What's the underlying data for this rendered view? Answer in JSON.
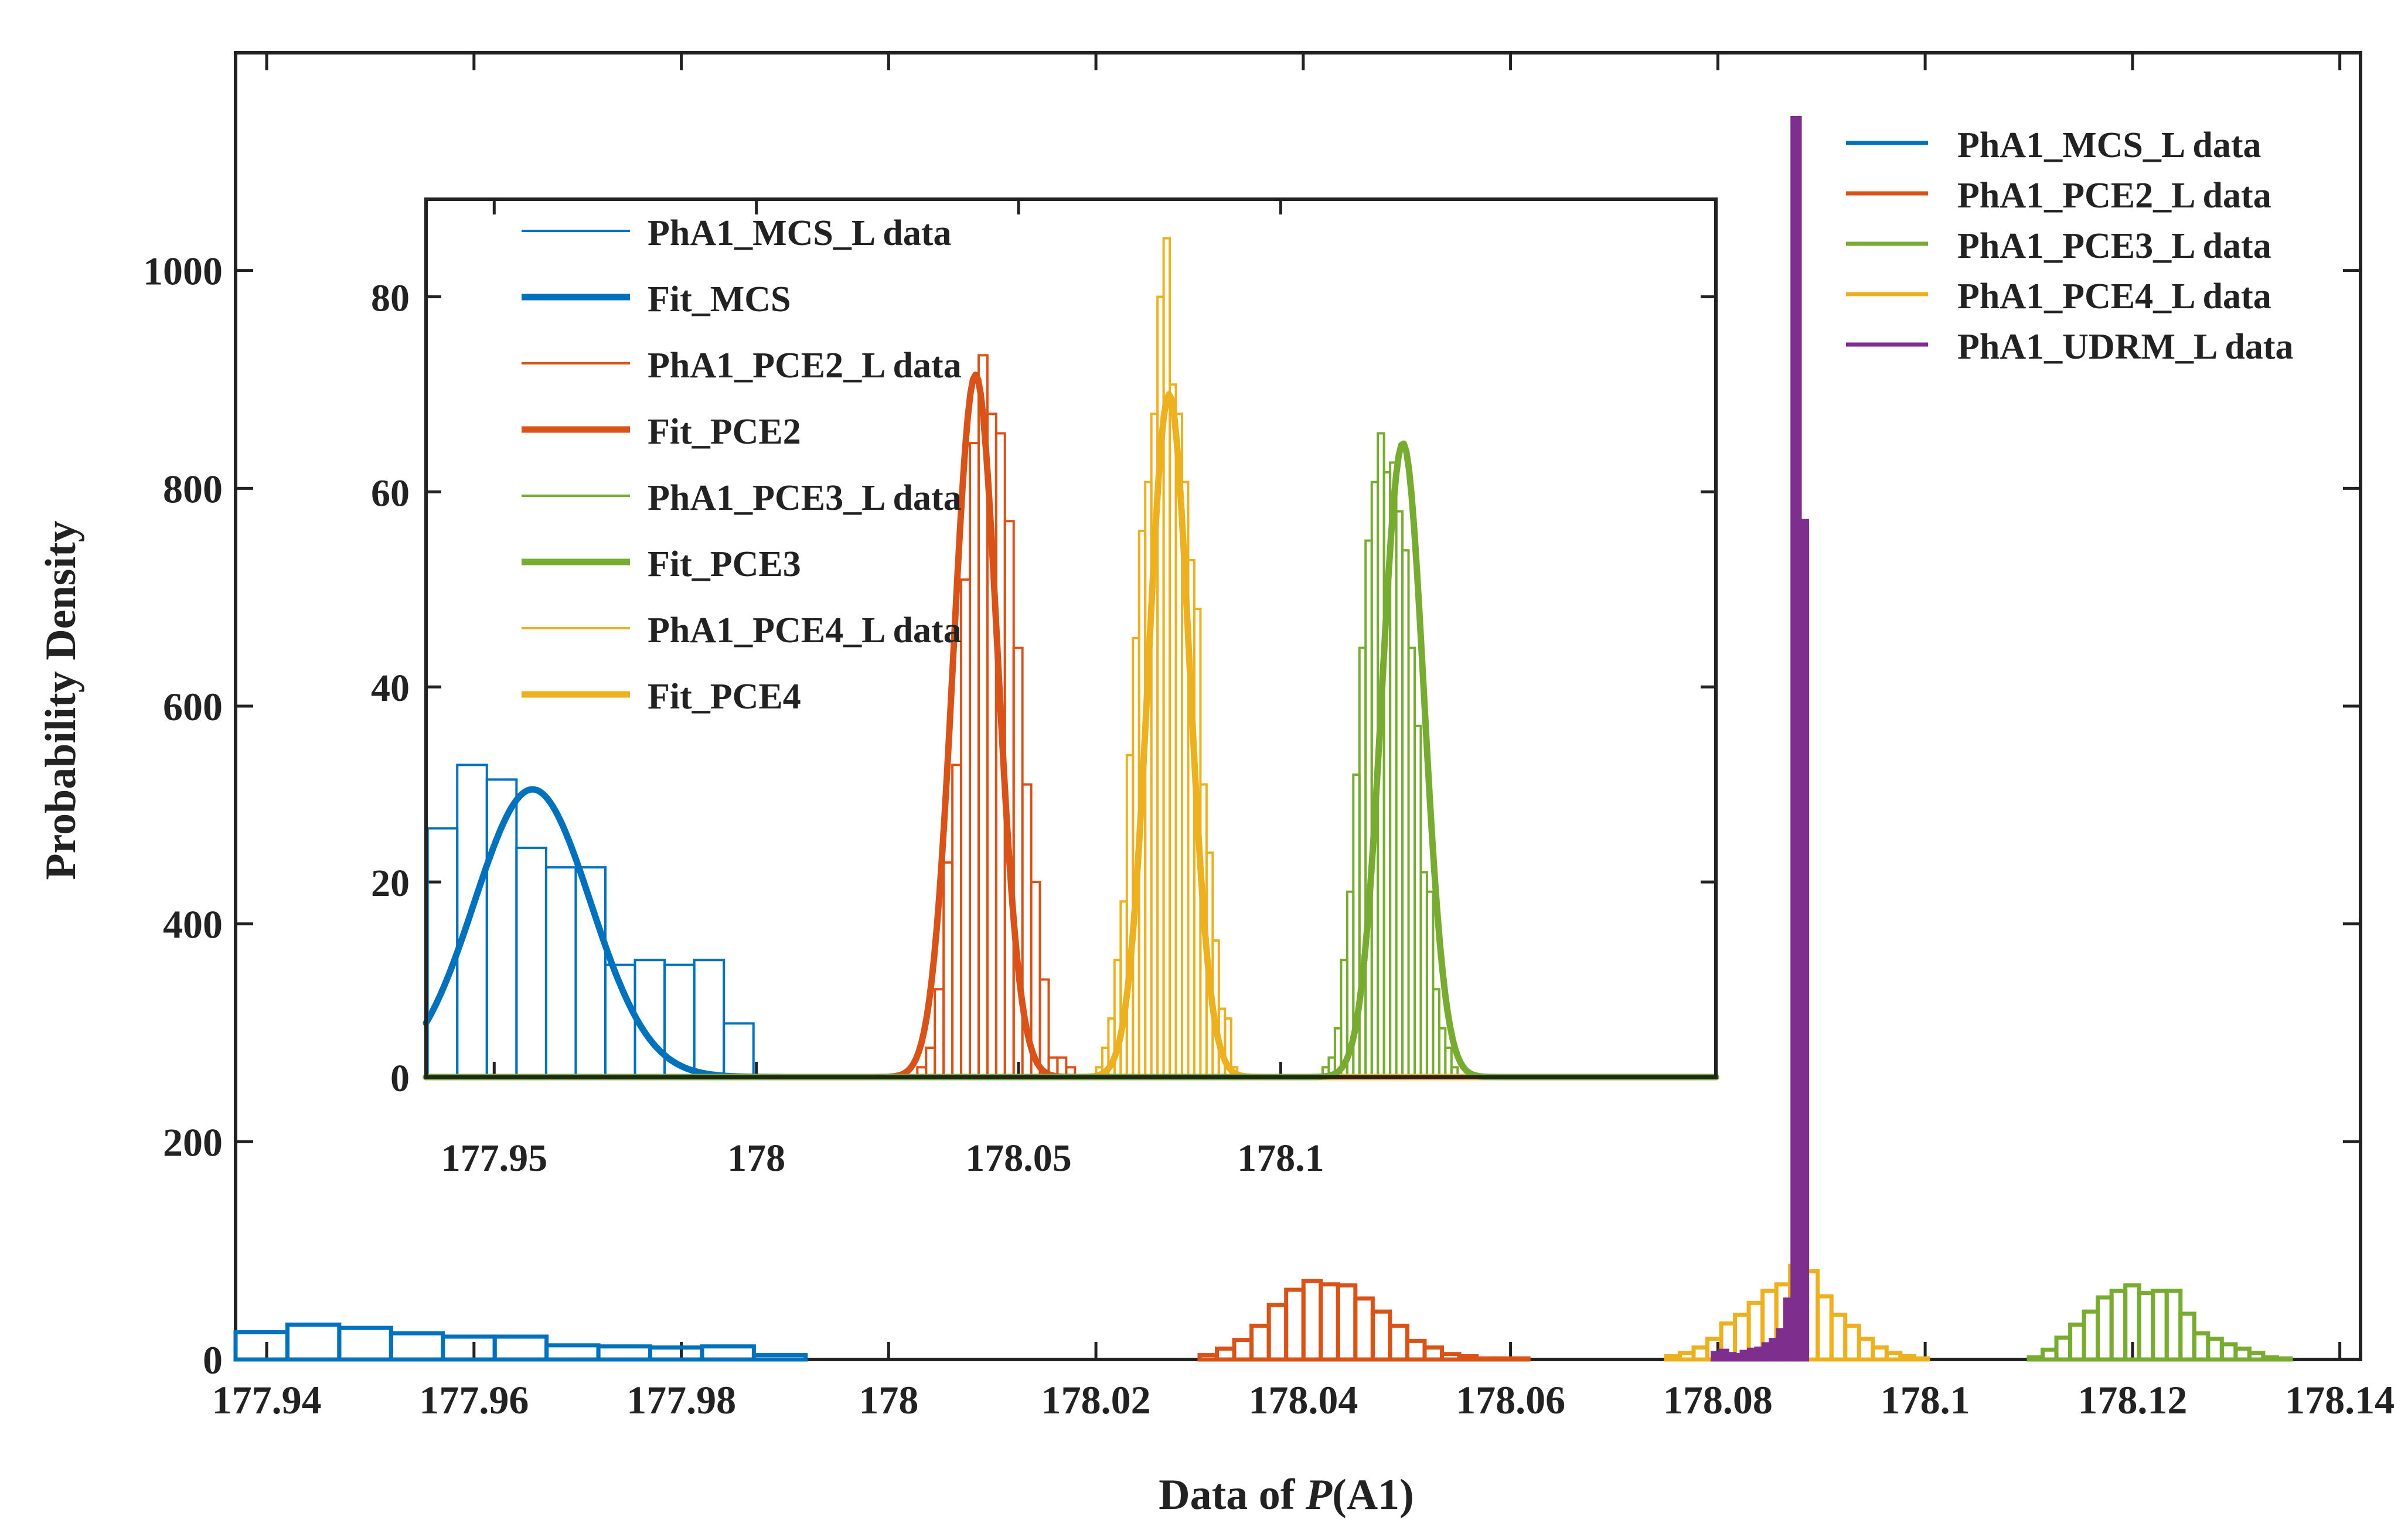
{
  "chart_data": [
    {
      "id": "main",
      "type": "histogram",
      "xlabel_prefix": "Data of ",
      "xlabel_var": "P",
      "xlabel_suffix": "(A1)",
      "ylabel": "Probability Density",
      "xlim": [
        177.937,
        178.142
      ],
      "ylim": [
        0,
        1200
      ],
      "xticks": [
        177.94,
        177.96,
        177.98,
        178,
        178.02,
        178.04,
        178.06,
        178.08,
        178.1,
        178.12,
        178.14
      ],
      "xtick_labels": [
        "177.94",
        "177.96",
        "177.98",
        "178",
        "178.02",
        "178.04",
        "178.06",
        "178.08",
        "178.1",
        "178.12",
        "178.14"
      ],
      "yticks": [
        0,
        200,
        400,
        600,
        800,
        1000
      ],
      "ytick_labels": [
        "0",
        "200",
        "400",
        "600",
        "800",
        "1000"
      ],
      "legend_position": "top-right",
      "legend": [
        {
          "label": "PhA1_MCS_L data",
          "color": "#0072BD"
        },
        {
          "label": "PhA1_PCE2_L data",
          "color": "#D95319"
        },
        {
          "label": "PhA1_PCE3_L data",
          "color": "#77AC30"
        },
        {
          "label": "PhA1_PCE4_L data",
          "color": "#EDB120"
        },
        {
          "label": "PhA1_UDRM_L data",
          "color": "#7E2F8E"
        }
      ],
      "series": [
        {
          "name": "PhA1_MCS_L data",
          "color": "#0072BD",
          "stroke": 7,
          "edges_start": 177.937,
          "bin_width": 0.005,
          "values": [
            25,
            32,
            29,
            24,
            21,
            21,
            13,
            12,
            11,
            12,
            4
          ]
        },
        {
          "name": "PhA1_PCE2_L data",
          "color": "#D95319",
          "stroke": 7,
          "edges_start": 178.03,
          "bin_width": 0.00167,
          "values": [
            4,
            10,
            18,
            31,
            50,
            64,
            72,
            69,
            68,
            56,
            44,
            31,
            17,
            11,
            5,
            3,
            1,
            1,
            1
          ]
        },
        {
          "name": "PhA1_PCE4_L data",
          "color": "#EDB120",
          "stroke": 7,
          "edges_start": 178.075,
          "bin_width": 0.00133,
          "values": [
            3,
            6,
            11,
            19,
            33,
            41,
            52,
            63,
            69,
            86,
            81,
            58,
            41,
            31,
            19,
            11,
            6,
            3,
            1
          ]
        },
        {
          "name": "PhA1_PCE3_L data",
          "color": "#77AC30",
          "stroke": 7,
          "edges_start": 178.11,
          "bin_width": 0.00133,
          "values": [
            2,
            9,
            20,
            32,
            44,
            57,
            63,
            68,
            61,
            63,
            63,
            42,
            24,
            19,
            14,
            10,
            6,
            2,
            1
          ]
        },
        {
          "name": "PhA1_UDRM_L data",
          "color": "#7E2F8E",
          "stroke": 7,
          "fill": true,
          "edges_start": 178.0795,
          "bin_width": 0.0007,
          "values": [
            6,
            8,
            5,
            4,
            7,
            9,
            10,
            14,
            18,
            27,
            55,
            1140,
            770
          ]
        }
      ]
    },
    {
      "id": "inset",
      "type": "histogram",
      "xlim": [
        177.937,
        178.183
      ],
      "ylim": [
        0,
        90
      ],
      "xticks": [
        177.95,
        178,
        178.05,
        178.1
      ],
      "xtick_labels": [
        "177.95",
        "178",
        "178.05",
        "178.1"
      ],
      "yticks": [
        0,
        20,
        40,
        60,
        80
      ],
      "ytick_labels": [
        "0",
        "20",
        "40",
        "60",
        "80"
      ],
      "legend_position": "top-left",
      "legend": [
        {
          "label": "PhA1_MCS_L data",
          "color": "#0072BD",
          "kind": "thin"
        },
        {
          "label": "Fit_MCS",
          "color": "#0072BD",
          "kind": "thick"
        },
        {
          "label": "PhA1_PCE2_L data",
          "color": "#D95319",
          "kind": "thin"
        },
        {
          "label": "Fit_PCE2",
          "color": "#D95319",
          "kind": "thick"
        },
        {
          "label": "PhA1_PCE3_L data",
          "color": "#77AC30",
          "kind": "thin"
        },
        {
          "label": "Fit_PCE3",
          "color": "#77AC30",
          "kind": "thick"
        },
        {
          "label": "PhA1_PCE4_L data",
          "color": "#EDB120",
          "kind": "thin"
        },
        {
          "label": "Fit_PCE4",
          "color": "#EDB120",
          "kind": "thick"
        }
      ],
      "histograms": [
        {
          "name": "PhA1_MCS_L data",
          "color": "#0072BD",
          "edges_start": 177.9373,
          "bin_width": 0.00565,
          "values": [
            25.5,
            32,
            30.5,
            23.5,
            21.5,
            21.5,
            11.5,
            12,
            11.5,
            12,
            5.5
          ]
        },
        {
          "name": "PhA1_PCE2_L data",
          "color": "#D95319",
          "edges_start": 178.0307,
          "bin_width": 0.00167,
          "values": [
            1,
            3,
            9,
            22,
            32,
            51,
            65,
            74,
            68,
            66,
            57,
            44,
            30,
            20,
            10,
            2,
            2,
            1
          ]
        },
        {
          "name": "PhA1_PCE4_L data",
          "color": "#EDB120",
          "edges_start": 178.0648,
          "bin_width": 0.00117,
          "values": [
            1,
            3,
            6,
            12,
            18,
            33,
            45,
            56,
            61,
            68,
            80,
            86,
            71,
            68,
            61,
            53,
            48,
            30,
            23,
            14,
            7,
            6,
            1
          ]
        },
        {
          "name": "PhA1_PCE3_L data",
          "color": "#77AC30",
          "edges_start": 178.108,
          "bin_width": 0.00117,
          "values": [
            1,
            2,
            5,
            12,
            19,
            31,
            44,
            55,
            61,
            66,
            62,
            63,
            58,
            54,
            44,
            36,
            21,
            19,
            9,
            5,
            3,
            1
          ]
        }
      ],
      "fits": [
        {
          "name": "Fit_MCS",
          "color": "#0072BD",
          "mean": 177.9573,
          "sd": 0.0111,
          "peak": 29.5
        },
        {
          "name": "Fit_PCE2",
          "color": "#D95319",
          "mean": 178.0418,
          "sd": 0.0042,
          "peak": 72
        },
        {
          "name": "Fit_PCE4",
          "color": "#EDB120",
          "mean": 178.0787,
          "sd": 0.0039,
          "peak": 70
        },
        {
          "name": "Fit_PCE3",
          "color": "#77AC30",
          "mean": 178.1233,
          "sd": 0.004,
          "peak": 65
        }
      ]
    }
  ]
}
